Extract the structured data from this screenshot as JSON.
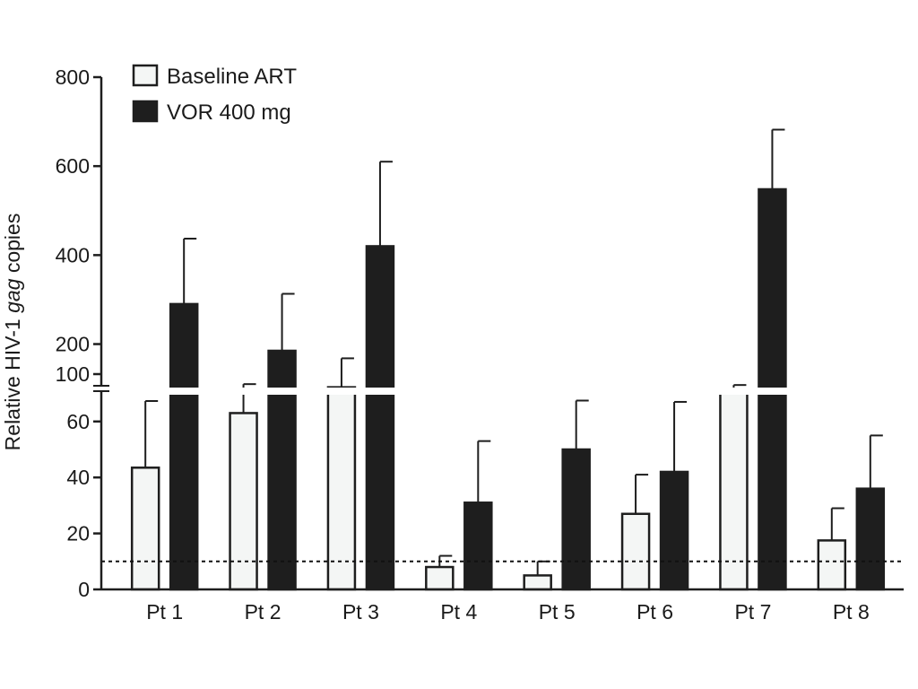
{
  "chart_data": {
    "type": "bar",
    "categories": [
      "Pt 1",
      "Pt 2",
      "Pt 3",
      "Pt 4",
      "Pt 5",
      "Pt 6",
      "Pt 7",
      "Pt 8"
    ],
    "series": [
      {
        "name": "Baseline ART",
        "color": "#f4f6f5",
        "values": [
          43.5,
          63,
          103,
          8,
          5,
          27,
          70,
          17.5
        ],
        "error_upper": [
          72,
          110,
          168,
          12,
          10,
          41,
          108,
          29
        ]
      },
      {
        "name": "VOR 400 mg",
        "color": "#1e1e1e",
        "values": [
          290,
          185,
          420,
          31,
          50,
          42,
          548,
          36
        ]
      }
    ],
    "vor_error_upper": [
      437,
      313,
      610,
      53,
      73,
      67,
      682,
      55
    ],
    "ylabel_parts": [
      "Relative HIV-1 ",
      "gag",
      " copies"
    ],
    "axis_break": {
      "lower_max": 70,
      "upper_min": 70
    },
    "ylim": [
      0,
      800
    ],
    "lower_ticks": [
      0,
      20,
      40,
      60
    ],
    "upper_ticks": [
      100,
      200,
      400,
      600,
      800
    ],
    "threshold_line": 10,
    "legend_position": "top-left"
  }
}
